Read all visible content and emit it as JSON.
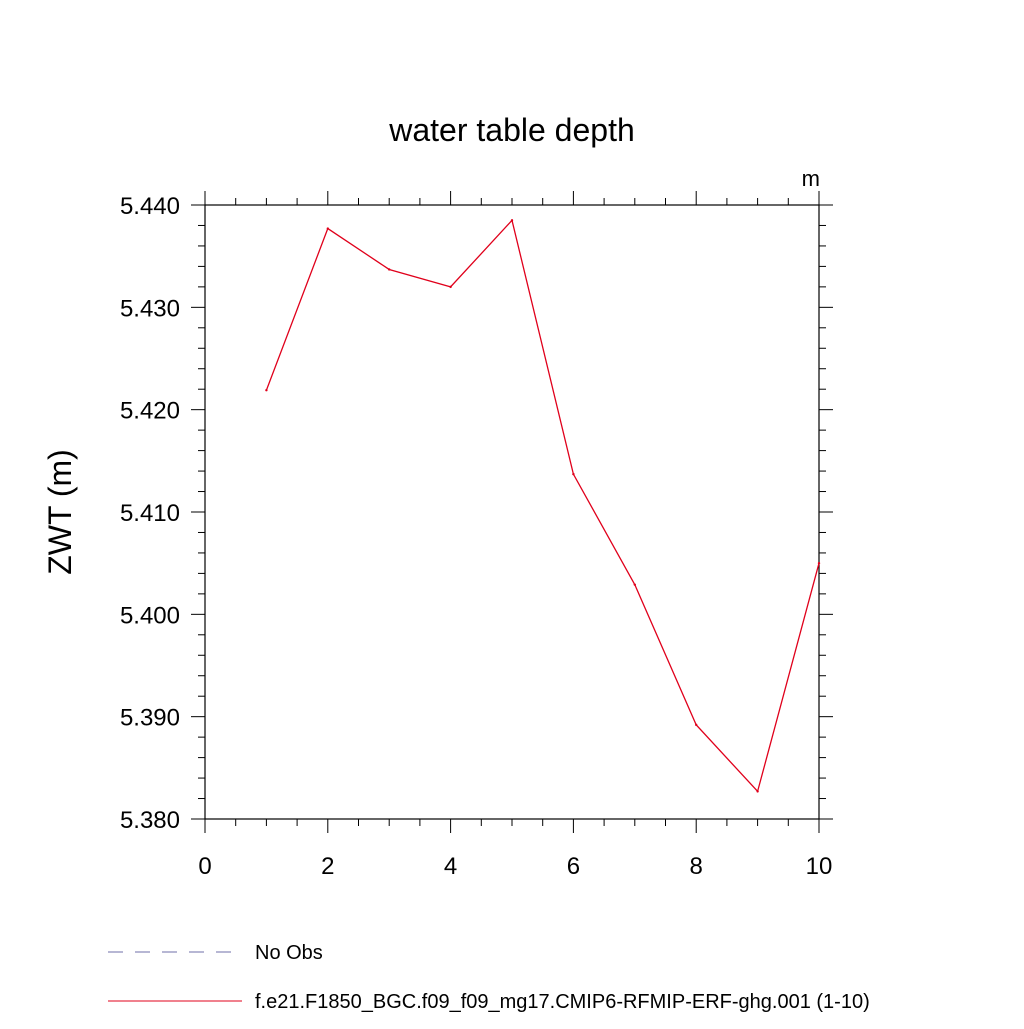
{
  "chart_data": {
    "type": "line",
    "title": "water table depth",
    "units_label": "m",
    "ylabel": "ZWT  (m)",
    "xlabel": "",
    "xlim": [
      0,
      10
    ],
    "ylim": [
      5.38,
      5.44
    ],
    "x_ticks": [
      0,
      2,
      4,
      6,
      8,
      10
    ],
    "x_tick_labels": [
      "0",
      "2",
      "4",
      "6",
      "8",
      "10"
    ],
    "y_ticks": [
      5.38,
      5.39,
      5.4,
      5.41,
      5.42,
      5.43,
      5.44
    ],
    "y_tick_labels": [
      "5.380",
      "5.390",
      "5.400",
      "5.410",
      "5.420",
      "5.430",
      "5.440"
    ],
    "grid": false,
    "legend_position": "bottom",
    "series": [
      {
        "name": "f.e21.F1850_BGC.f09_f09_mg17.CMIP6-RFMIP-ERF-ghg.001 (1-10)",
        "color": "#e0001b",
        "dash": "solid",
        "x": [
          1,
          2,
          3,
          4,
          5,
          6,
          7,
          8,
          9,
          10
        ],
        "values": [
          5.4219,
          5.4377,
          5.4337,
          5.432,
          5.4385,
          5.4137,
          5.4029,
          5.3892,
          5.3827,
          5.405
        ]
      }
    ],
    "legend": [
      {
        "label": "No Obs",
        "color": "#6f6fa8",
        "dash": "dashed"
      },
      {
        "label": "f.e21.F1850_BGC.f09_f09_mg17.CMIP6-RFMIP-ERF-ghg.001 (1-10)",
        "color": "#e0001b",
        "dash": "solid"
      }
    ]
  }
}
